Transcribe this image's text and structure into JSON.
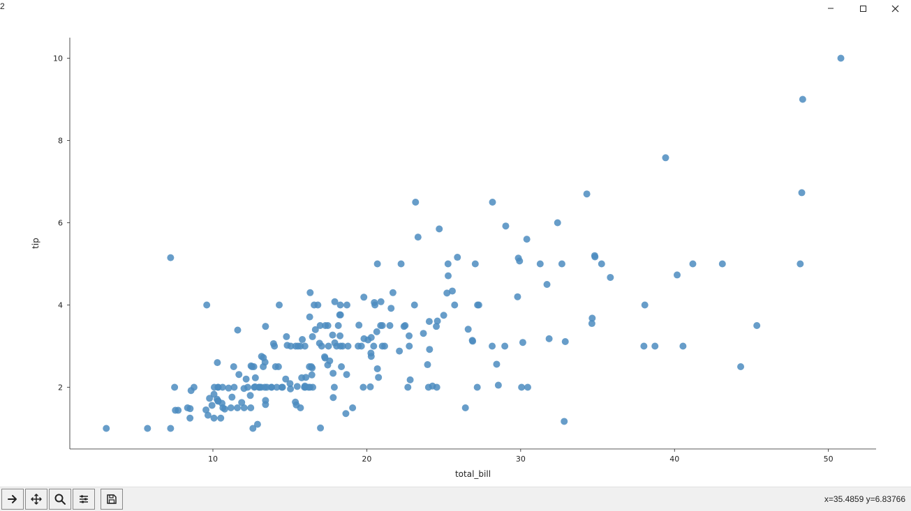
{
  "window": {
    "figure_number": "2",
    "min_tooltip": "Minimize",
    "max_tooltip": "Maximize",
    "close_tooltip": "Close"
  },
  "toolbar": {
    "buttons": [
      {
        "name": "home-button"
      },
      {
        "name": "back-button"
      },
      {
        "name": "forward-button"
      },
      {
        "name": "pan-button"
      },
      {
        "name": "zoom-button"
      },
      {
        "name": "configure-button"
      },
      {
        "name": "save-button"
      }
    ],
    "coord_readout": "x=35.4859     y=6.83766"
  },
  "chart": {
    "type": "scatter",
    "xlabel": "total_bill",
    "ylabel": "tip",
    "xlim": [
      0.7,
      53.1
    ],
    "ylim": [
      0.5,
      10.5
    ],
    "xticks": [
      10,
      20,
      30,
      40,
      50
    ],
    "yticks": [
      2,
      4,
      6,
      8,
      10
    ],
    "marker_color": "#4c8cbf",
    "marker_radius": 5,
    "background_color": "#ffffff",
    "spine_color": "#222222",
    "tick_length": 4,
    "axis_fontsize": 12,
    "tick_fontsize": 11,
    "points": [
      [
        16.99,
        1.01
      ],
      [
        10.34,
        1.66
      ],
      [
        21.01,
        3.5
      ],
      [
        23.68,
        3.31
      ],
      [
        24.59,
        3.61
      ],
      [
        25.29,
        4.71
      ],
      [
        8.77,
        2.0
      ],
      [
        26.88,
        3.12
      ],
      [
        15.04,
        1.96
      ],
      [
        14.78,
        3.23
      ],
      [
        10.27,
        1.71
      ],
      [
        35.26,
        5.0
      ],
      [
        15.42,
        1.57
      ],
      [
        18.43,
        3.0
      ],
      [
        14.83,
        3.02
      ],
      [
        21.58,
        3.92
      ],
      [
        10.33,
        1.67
      ],
      [
        16.29,
        3.71
      ],
      [
        16.97,
        3.5
      ],
      [
        20.65,
        3.35
      ],
      [
        17.92,
        4.08
      ],
      [
        20.29,
        2.75
      ],
      [
        15.77,
        2.23
      ],
      [
        39.42,
        7.58
      ],
      [
        19.82,
        3.18
      ],
      [
        17.81,
        2.34
      ],
      [
        13.37,
        2.0
      ],
      [
        12.69,
        2.0
      ],
      [
        21.7,
        4.3
      ],
      [
        19.65,
        3.0
      ],
      [
        9.55,
        1.45
      ],
      [
        18.35,
        2.5
      ],
      [
        15.06,
        3.0
      ],
      [
        20.69,
        2.45
      ],
      [
        17.78,
        3.27
      ],
      [
        24.06,
        3.6
      ],
      [
        16.31,
        2.0
      ],
      [
        16.93,
        3.07
      ],
      [
        18.69,
        2.31
      ],
      [
        31.27,
        5.0
      ],
      [
        16.04,
        2.24
      ],
      [
        17.46,
        2.54
      ],
      [
        13.94,
        3.06
      ],
      [
        9.68,
        1.32
      ],
      [
        30.4,
        5.6
      ],
      [
        18.29,
        3.0
      ],
      [
        22.23,
        5.0
      ],
      [
        32.4,
        6.0
      ],
      [
        28.55,
        2.05
      ],
      [
        18.04,
        3.0
      ],
      [
        12.54,
        2.5
      ],
      [
        10.29,
        2.6
      ],
      [
        34.81,
        5.2
      ],
      [
        9.94,
        1.56
      ],
      [
        25.56,
        4.34
      ],
      [
        19.49,
        3.51
      ],
      [
        38.01,
        3.0
      ],
      [
        26.41,
        1.5
      ],
      [
        11.24,
        1.76
      ],
      [
        48.27,
        6.73
      ],
      [
        20.29,
        3.21
      ],
      [
        13.81,
        2.0
      ],
      [
        11.02,
        1.98
      ],
      [
        18.29,
        3.76
      ],
      [
        17.59,
        2.64
      ],
      [
        20.08,
        3.15
      ],
      [
        16.45,
        2.47
      ],
      [
        3.07,
        1.0
      ],
      [
        20.23,
        2.01
      ],
      [
        15.01,
        2.09
      ],
      [
        12.02,
        1.97
      ],
      [
        17.07,
        3.0
      ],
      [
        26.86,
        3.14
      ],
      [
        25.28,
        5.0
      ],
      [
        14.73,
        2.2
      ],
      [
        10.51,
        1.25
      ],
      [
        17.92,
        3.08
      ],
      [
        27.2,
        4.0
      ],
      [
        22.76,
        3.0
      ],
      [
        17.29,
        2.71
      ],
      [
        19.44,
        3.0
      ],
      [
        16.66,
        3.4
      ],
      [
        10.07,
        1.83
      ],
      [
        32.68,
        5.0
      ],
      [
        15.98,
        2.03
      ],
      [
        34.83,
        5.17
      ],
      [
        13.03,
        2.0
      ],
      [
        18.28,
        4.0
      ],
      [
        24.71,
        5.85
      ],
      [
        21.16,
        3.0
      ],
      [
        28.97,
        3.0
      ],
      [
        22.49,
        3.5
      ],
      [
        5.75,
        1.0
      ],
      [
        16.32,
        4.3
      ],
      [
        22.75,
        3.25
      ],
      [
        40.17,
        4.73
      ],
      [
        27.28,
        4.0
      ],
      [
        12.03,
        1.5
      ],
      [
        21.01,
        3.0
      ],
      [
        12.46,
        1.5
      ],
      [
        11.35,
        2.5
      ],
      [
        15.38,
        3.0
      ],
      [
        44.3,
        2.5
      ],
      [
        22.42,
        3.48
      ],
      [
        20.92,
        4.08
      ],
      [
        15.36,
        1.64
      ],
      [
        20.49,
        4.06
      ],
      [
        25.21,
        4.29
      ],
      [
        18.24,
        3.76
      ],
      [
        14.31,
        4.0
      ],
      [
        14.0,
        3.0
      ],
      [
        7.25,
        1.0
      ],
      [
        38.07,
        4.0
      ],
      [
        23.95,
        2.55
      ],
      [
        25.71,
        4.0
      ],
      [
        17.31,
        3.5
      ],
      [
        29.93,
        5.07
      ],
      [
        10.65,
        1.5
      ],
      [
        12.43,
        1.8
      ],
      [
        24.08,
        2.92
      ],
      [
        11.69,
        2.31
      ],
      [
        13.42,
        1.68
      ],
      [
        14.26,
        2.5
      ],
      [
        15.95,
        2.0
      ],
      [
        12.48,
        2.52
      ],
      [
        29.8,
        4.2
      ],
      [
        8.52,
        1.48
      ],
      [
        14.52,
        2.0
      ],
      [
        11.38,
        2.0
      ],
      [
        22.82,
        2.18
      ],
      [
        19.08,
        1.5
      ],
      [
        20.27,
        2.83
      ],
      [
        11.17,
        1.5
      ],
      [
        12.26,
        2.0
      ],
      [
        18.26,
        3.25
      ],
      [
        8.51,
        1.25
      ],
      [
        10.33,
        2.0
      ],
      [
        14.15,
        2.0
      ],
      [
        16.0,
        2.0
      ],
      [
        13.16,
        2.75
      ],
      [
        17.47,
        3.5
      ],
      [
        34.3,
        6.7
      ],
      [
        41.19,
        5.0
      ],
      [
        27.05,
        5.0
      ],
      [
        16.43,
        2.3
      ],
      [
        8.35,
        1.5
      ],
      [
        18.64,
        1.36
      ],
      [
        11.87,
        1.63
      ],
      [
        9.78,
        1.73
      ],
      [
        7.51,
        2.0
      ],
      [
        14.07,
        2.5
      ],
      [
        13.13,
        2.0
      ],
      [
        17.26,
        2.74
      ],
      [
        24.55,
        2.0
      ],
      [
        19.77,
        2.0
      ],
      [
        29.85,
        5.14
      ],
      [
        48.17,
        5.0
      ],
      [
        25.0,
        3.75
      ],
      [
        13.39,
        2.61
      ],
      [
        16.49,
        2.0
      ],
      [
        21.5,
        3.5
      ],
      [
        12.66,
        2.5
      ],
      [
        16.21,
        2.0
      ],
      [
        13.81,
        2.0
      ],
      [
        17.51,
        3.0
      ],
      [
        24.52,
        3.48
      ],
      [
        20.76,
        2.24
      ],
      [
        31.71,
        4.5
      ],
      [
        10.59,
        1.61
      ],
      [
        10.63,
        2.0
      ],
      [
        50.81,
        10.0
      ],
      [
        15.81,
        3.16
      ],
      [
        7.25,
        5.15
      ],
      [
        31.85,
        3.18
      ],
      [
        16.82,
        4.0
      ],
      [
        32.9,
        3.11
      ],
      [
        17.89,
        2.0
      ],
      [
        14.48,
        2.0
      ],
      [
        9.6,
        4.0
      ],
      [
        34.63,
        3.55
      ],
      [
        34.65,
        3.68
      ],
      [
        23.33,
        5.65
      ],
      [
        45.35,
        3.5
      ],
      [
        23.17,
        6.5
      ],
      [
        40.55,
        3.0
      ],
      [
        20.69,
        5.0
      ],
      [
        20.9,
        3.5
      ],
      [
        30.46,
        2.0
      ],
      [
        18.15,
        3.5
      ],
      [
        23.1,
        4.0
      ],
      [
        15.69,
        1.5
      ],
      [
        19.81,
        4.19
      ],
      [
        28.44,
        2.56
      ],
      [
        15.48,
        2.02
      ],
      [
        16.58,
        4.0
      ],
      [
        7.56,
        1.44
      ],
      [
        10.34,
        2.0
      ],
      [
        43.11,
        5.0
      ],
      [
        13.0,
        2.0
      ],
      [
        13.51,
        2.0
      ],
      [
        18.71,
        4.0
      ],
      [
        12.74,
        2.01
      ],
      [
        13.0,
        2.0
      ],
      [
        16.4,
        2.5
      ],
      [
        20.53,
        4.0
      ],
      [
        16.47,
        3.23
      ],
      [
        26.59,
        3.41
      ],
      [
        38.73,
        3.0
      ],
      [
        24.27,
        2.03
      ],
      [
        12.76,
        2.23
      ],
      [
        30.06,
        2.0
      ],
      [
        25.89,
        5.16
      ],
      [
        48.33,
        9.0
      ],
      [
        13.27,
        2.5
      ],
      [
        28.17,
        6.5
      ],
      [
        12.9,
        1.1
      ],
      [
        28.15,
        3.0
      ],
      [
        11.59,
        1.5
      ],
      [
        7.74,
        1.44
      ],
      [
        30.14,
        3.09
      ],
      [
        12.16,
        2.2
      ],
      [
        13.42,
        3.48
      ],
      [
        8.58,
        1.92
      ],
      [
        15.98,
        3.0
      ],
      [
        13.42,
        1.58
      ],
      [
        16.27,
        2.5
      ],
      [
        10.09,
        2.0
      ],
      [
        20.45,
        3.0
      ],
      [
        13.28,
        2.72
      ],
      [
        22.12,
        2.88
      ],
      [
        24.01,
        2.0
      ],
      [
        15.69,
        3.0
      ],
      [
        11.61,
        3.39
      ],
      [
        10.77,
        1.47
      ],
      [
        15.53,
        3.0
      ],
      [
        10.07,
        1.25
      ],
      [
        12.6,
        1.0
      ],
      [
        32.83,
        1.17
      ],
      [
        35.83,
        4.67
      ],
      [
        29.03,
        5.92
      ],
      [
        27.18,
        2.0
      ],
      [
        22.67,
        2.0
      ],
      [
        17.82,
        1.75
      ],
      [
        18.78,
        3.0
      ]
    ]
  }
}
